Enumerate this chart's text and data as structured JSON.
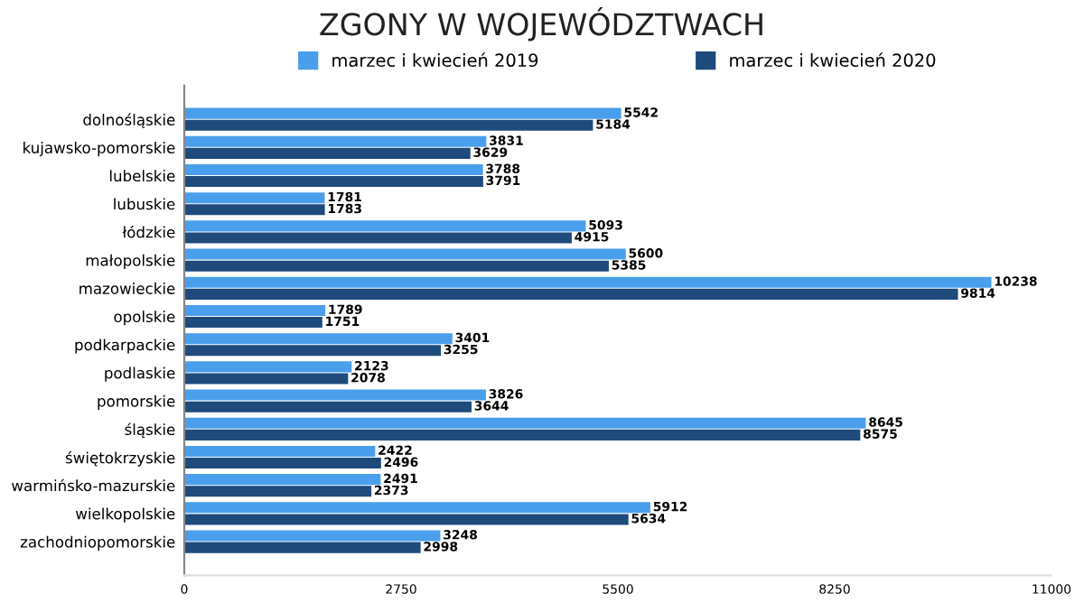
{
  "chart_data": {
    "type": "bar",
    "orientation": "horizontal",
    "title": "ZGONY W WOJEWÓDZTWACH",
    "categories": [
      "dolnośląskie",
      "kujawsko-pomorskie",
      "lubelskie",
      "lubuskie",
      "łódzkie",
      "małopolskie",
      "mazowieckie",
      "opolskie",
      "podkarpackie",
      "podlaskie",
      "pomorskie",
      "śląskie",
      "świętokrzyskie",
      "warmińsko-mazurskie",
      "wielkopolskie",
      "zachodniopomorskie"
    ],
    "series": [
      {
        "name": "marzec i kwiecień 2019",
        "color": "#4a9fec",
        "values": [
          5542,
          3831,
          3788,
          1781,
          5093,
          5600,
          10238,
          1789,
          3401,
          2123,
          3826,
          8645,
          2422,
          2491,
          5912,
          3248
        ]
      },
      {
        "name": "marzec i kwiecień 2020",
        "color": "#1e4a7c",
        "values": [
          5184,
          3629,
          3791,
          1783,
          4915,
          5385,
          9814,
          1751,
          3255,
          2078,
          3644,
          8575,
          2496,
          2373,
          5634,
          2998
        ]
      }
    ],
    "xlim": [
      0,
      11000
    ],
    "xticks": [
      0,
      2750,
      5500,
      8250,
      11000
    ],
    "data_labels": true,
    "legend": "top",
    "grid": false
  }
}
